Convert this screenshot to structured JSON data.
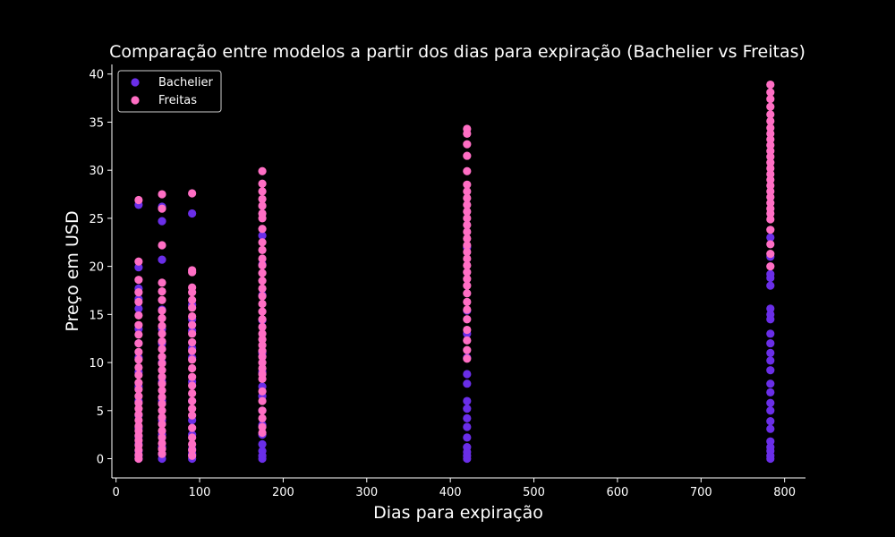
{
  "chart_data": {
    "type": "scatter",
    "title": "Comparação entre modelos a partir dos dias para expiração (Bachelier vs Freitas)",
    "xlabel": "Dias para expiração",
    "ylabel": "Preço em USD",
    "xlim": [
      -5,
      825
    ],
    "ylim": [
      -2,
      41
    ],
    "xticks": [
      0,
      100,
      200,
      300,
      400,
      500,
      600,
      700,
      800
    ],
    "yticks": [
      0,
      5,
      10,
      15,
      20,
      25,
      30,
      35,
      40
    ],
    "grid": false,
    "legend": {
      "placement": "top-left"
    },
    "series": [
      {
        "name": "Bachelier",
        "color": "#6a2ee8",
        "points": [
          [
            27,
            0
          ],
          [
            27,
            0.3
          ],
          [
            27,
            0.8
          ],
          [
            27,
            1.5
          ],
          [
            27,
            2.3
          ],
          [
            27,
            3.2
          ],
          [
            27,
            4.5
          ],
          [
            27,
            6
          ],
          [
            27,
            7.5
          ],
          [
            27,
            9
          ],
          [
            27,
            10.5
          ],
          [
            27,
            12
          ],
          [
            27,
            13.5
          ],
          [
            27,
            15.6
          ],
          [
            27,
            16.6
          ],
          [
            27,
            17.7
          ],
          [
            27,
            19.9
          ],
          [
            27,
            26.4
          ],
          [
            55,
            0
          ],
          [
            55,
            0.5
          ],
          [
            55,
            1.2
          ],
          [
            55,
            2.5
          ],
          [
            55,
            4
          ],
          [
            55,
            6
          ],
          [
            55,
            8
          ],
          [
            55,
            10
          ],
          [
            55,
            12
          ],
          [
            55,
            13.5
          ],
          [
            55,
            15.5
          ],
          [
            55,
            20.7
          ],
          [
            55,
            24.7
          ],
          [
            55,
            26.2
          ],
          [
            91,
            0
          ],
          [
            91,
            0.5
          ],
          [
            91,
            1
          ],
          [
            91,
            2.5
          ],
          [
            91,
            4
          ],
          [
            91,
            6
          ],
          [
            91,
            8
          ],
          [
            91,
            10.5
          ],
          [
            91,
            11.5
          ],
          [
            91,
            13.3
          ],
          [
            91,
            14.5
          ],
          [
            91,
            16
          ],
          [
            91,
            25.5
          ],
          [
            175,
            0
          ],
          [
            175,
            0.3
          ],
          [
            175,
            0.8
          ],
          [
            175,
            1.5
          ],
          [
            175,
            2.5
          ],
          [
            175,
            3.5
          ],
          [
            175,
            5
          ],
          [
            175,
            6.5
          ],
          [
            175,
            7.5
          ],
          [
            175,
            9
          ],
          [
            175,
            11
          ],
          [
            175,
            14.4
          ],
          [
            175,
            17
          ],
          [
            175,
            20.2
          ],
          [
            175,
            23.2
          ],
          [
            420,
            0
          ],
          [
            420,
            0.3
          ],
          [
            420,
            0.7
          ],
          [
            420,
            1.2
          ],
          [
            420,
            2.2
          ],
          [
            420,
            3.3
          ],
          [
            420,
            4.2
          ],
          [
            420,
            5.2
          ],
          [
            420,
            6
          ],
          [
            420,
            7.8
          ],
          [
            420,
            8.8
          ],
          [
            420,
            10.5
          ],
          [
            420,
            13
          ],
          [
            420,
            15.4
          ],
          [
            420,
            22
          ],
          [
            783,
            0
          ],
          [
            783,
            0.3
          ],
          [
            783,
            0.8
          ],
          [
            783,
            1.2
          ],
          [
            783,
            1.8
          ],
          [
            783,
            3.1
          ],
          [
            783,
            3.9
          ],
          [
            783,
            5
          ],
          [
            783,
            5.8
          ],
          [
            783,
            6.9
          ],
          [
            783,
            7.8
          ],
          [
            783,
            9.2
          ],
          [
            783,
            10.2
          ],
          [
            783,
            11
          ],
          [
            783,
            12
          ],
          [
            783,
            13
          ],
          [
            783,
            14.5
          ],
          [
            783,
            15
          ],
          [
            783,
            15.6
          ],
          [
            783,
            18
          ],
          [
            783,
            18.8
          ],
          [
            783,
            19.2
          ],
          [
            783,
            21
          ],
          [
            783,
            23
          ]
        ]
      },
      {
        "name": "Freitas",
        "color": "#ff6ec4",
        "points": [
          [
            27,
            0
          ],
          [
            27,
            0.4
          ],
          [
            27,
            0.9
          ],
          [
            27,
            1.4
          ],
          [
            27,
            1.9
          ],
          [
            27,
            2.4
          ],
          [
            27,
            2.9
          ],
          [
            27,
            3.4
          ],
          [
            27,
            4
          ],
          [
            27,
            4.6
          ],
          [
            27,
            5.2
          ],
          [
            27,
            5.8
          ],
          [
            27,
            6.5
          ],
          [
            27,
            7.2
          ],
          [
            27,
            7.9
          ],
          [
            27,
            8.7
          ],
          [
            27,
            9.5
          ],
          [
            27,
            10.3
          ],
          [
            27,
            11.1
          ],
          [
            27,
            12
          ],
          [
            27,
            12.9
          ],
          [
            27,
            13.9
          ],
          [
            27,
            14.9
          ],
          [
            27,
            16.3
          ],
          [
            27,
            17.3
          ],
          [
            27,
            18.6
          ],
          [
            27,
            20.5
          ],
          [
            27,
            26.9
          ],
          [
            55,
            0.5
          ],
          [
            55,
            1
          ],
          [
            55,
            1.6
          ],
          [
            55,
            2.2
          ],
          [
            55,
            2.9
          ],
          [
            55,
            3.6
          ],
          [
            55,
            4.3
          ],
          [
            55,
            5
          ],
          [
            55,
            5.7
          ],
          [
            55,
            6.4
          ],
          [
            55,
            7.1
          ],
          [
            55,
            7.8
          ],
          [
            55,
            8.5
          ],
          [
            55,
            9.2
          ],
          [
            55,
            9.9
          ],
          [
            55,
            10.6
          ],
          [
            55,
            11.4
          ],
          [
            55,
            12.2
          ],
          [
            55,
            13
          ],
          [
            55,
            13.8
          ],
          [
            55,
            14.6
          ],
          [
            55,
            15.4
          ],
          [
            55,
            16.5
          ],
          [
            55,
            17.4
          ],
          [
            55,
            18.3
          ],
          [
            55,
            22.2
          ],
          [
            55,
            26
          ],
          [
            55,
            27.5
          ],
          [
            91,
            0.3
          ],
          [
            91,
            0.9
          ],
          [
            91,
            1.5
          ],
          [
            91,
            2.2
          ],
          [
            91,
            3.2
          ],
          [
            91,
            4.5
          ],
          [
            91,
            5.2
          ],
          [
            91,
            6
          ],
          [
            91,
            6.8
          ],
          [
            91,
            7.6
          ],
          [
            91,
            8.5
          ],
          [
            91,
            9.4
          ],
          [
            91,
            10.3
          ],
          [
            91,
            11.2
          ],
          [
            91,
            12.1
          ],
          [
            91,
            13
          ],
          [
            91,
            13.9
          ],
          [
            91,
            14.8
          ],
          [
            91,
            15.7
          ],
          [
            91,
            16.5
          ],
          [
            91,
            17.3
          ],
          [
            91,
            17.8
          ],
          [
            91,
            19.4
          ],
          [
            91,
            19.6
          ],
          [
            91,
            27.6
          ],
          [
            175,
            2.7
          ],
          [
            175,
            3.3
          ],
          [
            175,
            4.2
          ],
          [
            175,
            5
          ],
          [
            175,
            6
          ],
          [
            175,
            7
          ],
          [
            175,
            8.3
          ],
          [
            175,
            8.8
          ],
          [
            175,
            9.4
          ],
          [
            175,
            10
          ],
          [
            175,
            10.6
          ],
          [
            175,
            11.2
          ],
          [
            175,
            11.8
          ],
          [
            175,
            12.4
          ],
          [
            175,
            13
          ],
          [
            175,
            13.7
          ],
          [
            175,
            14.5
          ],
          [
            175,
            15.3
          ],
          [
            175,
            16.1
          ],
          [
            175,
            16.9
          ],
          [
            175,
            17.7
          ],
          [
            175,
            18.5
          ],
          [
            175,
            19.3
          ],
          [
            175,
            20.1
          ],
          [
            175,
            20.8
          ],
          [
            175,
            21.7
          ],
          [
            175,
            22.5
          ],
          [
            175,
            23.9
          ],
          [
            175,
            25
          ],
          [
            175,
            25.5
          ],
          [
            175,
            26.3
          ],
          [
            175,
            27
          ],
          [
            175,
            27.8
          ],
          [
            175,
            28.6
          ],
          [
            175,
            29.9
          ],
          [
            420,
            10.4
          ],
          [
            420,
            11.3
          ],
          [
            420,
            12.3
          ],
          [
            420,
            13.4
          ],
          [
            420,
            14.5
          ],
          [
            420,
            15.5
          ],
          [
            420,
            16.3
          ],
          [
            420,
            17.2
          ],
          [
            420,
            18
          ],
          [
            420,
            18.7
          ],
          [
            420,
            19.4
          ],
          [
            420,
            20.1
          ],
          [
            420,
            20.8
          ],
          [
            420,
            21.5
          ],
          [
            420,
            22.2
          ],
          [
            420,
            22.9
          ],
          [
            420,
            23.6
          ],
          [
            420,
            24.3
          ],
          [
            420,
            25
          ],
          [
            420,
            25.7
          ],
          [
            420,
            26.4
          ],
          [
            420,
            27.1
          ],
          [
            420,
            27.8
          ],
          [
            420,
            28.5
          ],
          [
            420,
            29.9
          ],
          [
            420,
            31.5
          ],
          [
            420,
            32.7
          ],
          [
            420,
            33.8
          ],
          [
            420,
            34.3
          ],
          [
            783,
            20
          ],
          [
            783,
            21.3
          ],
          [
            783,
            22.3
          ],
          [
            783,
            23.8
          ],
          [
            783,
            24.9
          ],
          [
            783,
            25.5
          ],
          [
            783,
            26
          ],
          [
            783,
            26.6
          ],
          [
            783,
            27.2
          ],
          [
            783,
            27.8
          ],
          [
            783,
            28.4
          ],
          [
            783,
            29
          ],
          [
            783,
            29.6
          ],
          [
            783,
            30.2
          ],
          [
            783,
            30.8
          ],
          [
            783,
            31.4
          ],
          [
            783,
            32
          ],
          [
            783,
            32.6
          ],
          [
            783,
            33.2
          ],
          [
            783,
            33.8
          ],
          [
            783,
            34.4
          ],
          [
            783,
            35.1
          ],
          [
            783,
            35.8
          ],
          [
            783,
            36.6
          ],
          [
            783,
            37.4
          ],
          [
            783,
            38.1
          ],
          [
            783,
            38.9
          ]
        ]
      }
    ]
  }
}
